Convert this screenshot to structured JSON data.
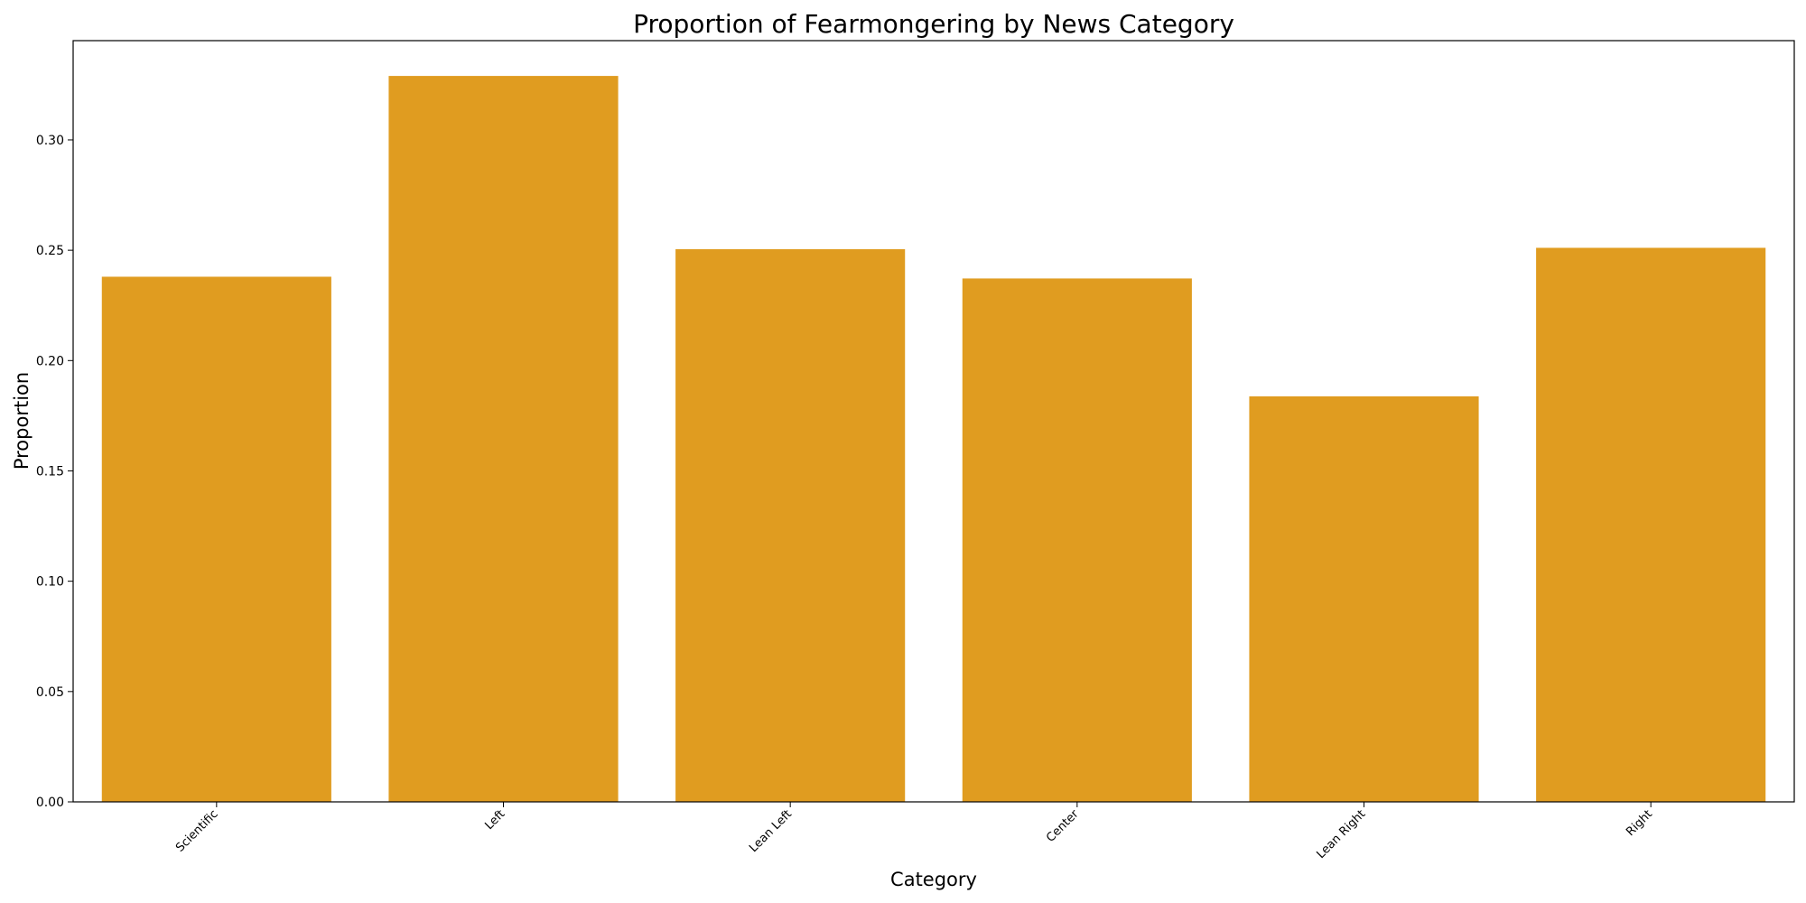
{
  "chart_data": {
    "type": "bar",
    "title": "Proportion of Fearmongering by News Category",
    "xlabel": "Category",
    "ylabel": "Proportion",
    "categories": [
      "Scientific",
      "Left",
      "Lean Left",
      "Center",
      "Lean Right",
      "Right"
    ],
    "values": [
      0.238,
      0.329,
      0.2505,
      0.2372,
      0.1838,
      0.2511
    ],
    "ylim": [
      0,
      0.345
    ],
    "yticks": [
      "0.00",
      "0.05",
      "0.10",
      "0.15",
      "0.20",
      "0.25",
      "0.30"
    ],
    "grid": false,
    "legend": "none",
    "bar_color": "#e09c20"
  }
}
